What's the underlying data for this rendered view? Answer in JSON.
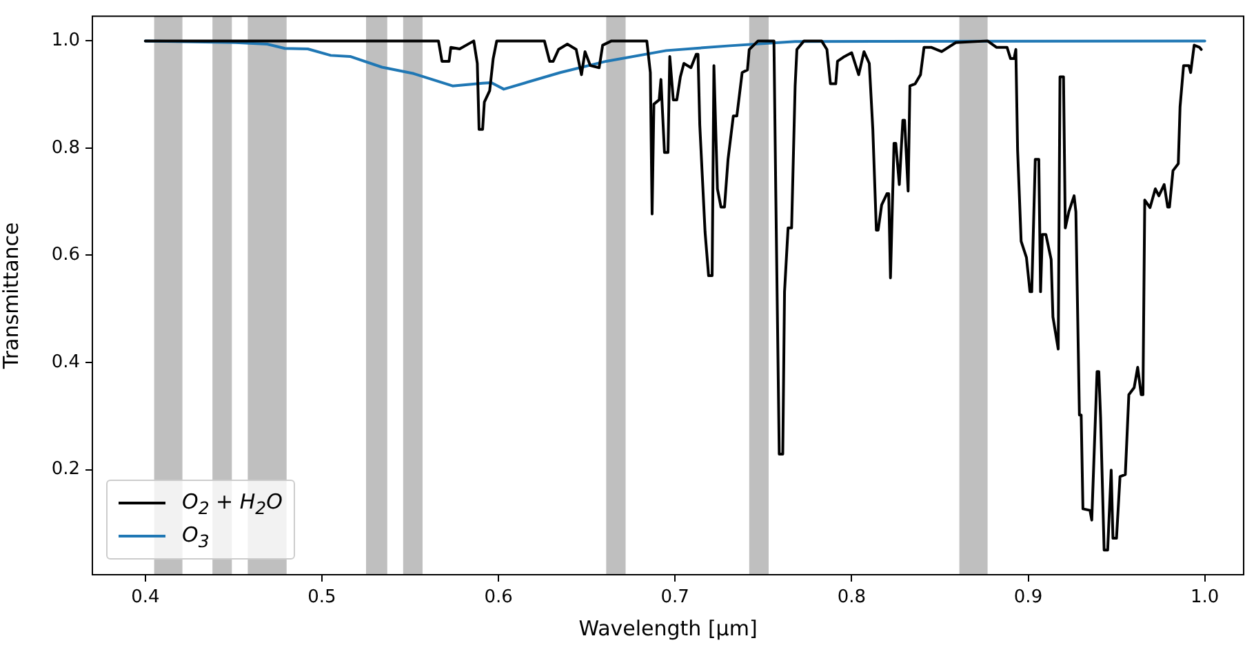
{
  "chart_data": {
    "type": "line",
    "xlabel": "Wavelength [μm]",
    "ylabel": "Transmittance",
    "xlim": [
      0.37,
      1.022
    ],
    "ylim": [
      0.004,
      1.046
    ],
    "xticks": [
      {
        "value": 0.4,
        "label": "0.4"
      },
      {
        "value": 0.5,
        "label": "0.5"
      },
      {
        "value": 0.6,
        "label": "0.6"
      },
      {
        "value": 0.7,
        "label": "0.7"
      },
      {
        "value": 0.8,
        "label": "0.8"
      },
      {
        "value": 0.9,
        "label": "0.9"
      },
      {
        "value": 1.0,
        "label": "1.0"
      }
    ],
    "yticks": [
      {
        "value": 0.2,
        "label": "0.2"
      },
      {
        "value": 0.4,
        "label": "0.4"
      },
      {
        "value": 0.6,
        "label": "0.6"
      },
      {
        "value": 0.8,
        "label": "0.8"
      },
      {
        "value": 1.0,
        "label": "1.0"
      }
    ],
    "grid": false,
    "legend": "bottom left",
    "marker": "none",
    "line_style": "solid",
    "bands": [
      {
        "axis": "x",
        "from": 0.405,
        "to": 0.421,
        "color": "#bfbfbf"
      },
      {
        "axis": "x",
        "from": 0.438,
        "to": 0.449,
        "color": "#bfbfbf"
      },
      {
        "axis": "x",
        "from": 0.458,
        "to": 0.48,
        "color": "#bfbfbf"
      },
      {
        "axis": "x",
        "from": 0.525,
        "to": 0.537,
        "color": "#bfbfbf"
      },
      {
        "axis": "x",
        "from": 0.546,
        "to": 0.557,
        "color": "#bfbfbf"
      },
      {
        "axis": "x",
        "from": 0.661,
        "to": 0.672,
        "color": "#bfbfbf"
      },
      {
        "axis": "x",
        "from": 0.742,
        "to": 0.753,
        "color": "#bfbfbf"
      },
      {
        "axis": "x",
        "from": 0.861,
        "to": 0.877,
        "color": "#bfbfbf"
      }
    ],
    "series": [
      {
        "name": "O$_{2}$ + H$_{2}$O",
        "color": "#000000",
        "x": [
          0.4,
          0.566,
          0.568,
          0.569,
          0.572,
          0.573,
          0.578,
          0.586,
          0.588,
          0.589,
          0.591,
          0.592,
          0.595,
          0.597,
          0.599,
          0.626,
          0.629,
          0.631,
          0.634,
          0.639,
          0.644,
          0.647,
          0.649,
          0.652,
          0.657,
          0.659,
          0.664,
          0.684,
          0.686,
          0.687,
          0.688,
          0.691,
          0.692,
          0.694,
          0.696,
          0.697,
          0.699,
          0.701,
          0.703,
          0.705,
          0.709,
          0.712,
          0.713,
          0.714,
          0.717,
          0.719,
          0.721,
          0.722,
          0.724,
          0.726,
          0.728,
          0.73,
          0.733,
          0.735,
          0.738,
          0.741,
          0.742,
          0.747,
          0.756,
          0.757,
          0.759,
          0.761,
          0.762,
          0.764,
          0.766,
          0.768,
          0.769,
          0.773,
          0.783,
          0.786,
          0.788,
          0.791,
          0.792,
          0.796,
          0.8,
          0.804,
          0.807,
          0.81,
          0.812,
          0.814,
          0.815,
          0.817,
          0.82,
          0.821,
          0.822,
          0.824,
          0.825,
          0.827,
          0.829,
          0.83,
          0.832,
          0.833,
          0.836,
          0.839,
          0.841,
          0.845,
          0.851,
          0.859,
          0.877,
          0.882,
          0.888,
          0.89,
          0.892,
          0.893,
          0.894,
          0.896,
          0.899,
          0.901,
          0.902,
          0.904,
          0.906,
          0.907,
          0.908,
          0.91,
          0.913,
          0.914,
          0.917,
          0.918,
          0.92,
          0.921,
          0.923,
          0.926,
          0.927,
          0.929,
          0.93,
          0.931,
          0.935,
          0.936,
          0.939,
          0.94,
          0.941,
          0.943,
          0.945,
          0.947,
          0.948,
          0.95,
          0.952,
          0.955,
          0.957,
          0.96,
          0.962,
          0.964,
          0.965,
          0.966,
          0.969,
          0.972,
          0.974,
          0.977,
          0.979,
          0.98,
          0.982,
          0.985,
          0.986,
          0.988,
          0.991,
          0.992,
          0.994,
          0.997,
          0.998
        ],
        "values": [
          1.0,
          1.0,
          0.962,
          0.962,
          0.962,
          0.988,
          0.985,
          1.0,
          0.958,
          0.835,
          0.835,
          0.886,
          0.907,
          0.967,
          1.0,
          1.0,
          0.962,
          0.962,
          0.984,
          0.994,
          0.984,
          0.937,
          0.98,
          0.954,
          0.95,
          0.992,
          1.0,
          1.0,
          0.941,
          0.677,
          0.882,
          0.89,
          0.928,
          0.792,
          0.792,
          0.971,
          0.89,
          0.89,
          0.933,
          0.958,
          0.95,
          0.975,
          0.975,
          0.843,
          0.643,
          0.562,
          0.562,
          0.954,
          0.724,
          0.69,
          0.69,
          0.779,
          0.86,
          0.86,
          0.941,
          0.946,
          0.984,
          1.0,
          1.0,
          0.728,
          0.229,
          0.229,
          0.532,
          0.651,
          0.651,
          0.916,
          0.984,
          1.0,
          1.0,
          0.984,
          0.92,
          0.92,
          0.962,
          0.971,
          0.978,
          0.937,
          0.98,
          0.958,
          0.835,
          0.647,
          0.647,
          0.694,
          0.715,
          0.715,
          0.558,
          0.809,
          0.809,
          0.732,
          0.852,
          0.852,
          0.72,
          0.916,
          0.92,
          0.937,
          0.988,
          0.988,
          0.98,
          0.997,
          1.0,
          0.988,
          0.988,
          0.967,
          0.967,
          0.984,
          0.796,
          0.626,
          0.596,
          0.532,
          0.532,
          0.779,
          0.779,
          0.532,
          0.639,
          0.639,
          0.592,
          0.485,
          0.425,
          0.933,
          0.933,
          0.651,
          0.681,
          0.711,
          0.681,
          0.302,
          0.302,
          0.127,
          0.124,
          0.106,
          0.383,
          0.383,
          0.297,
          0.05,
          0.05,
          0.199,
          0.072,
          0.072,
          0.187,
          0.191,
          0.34,
          0.353,
          0.391,
          0.34,
          0.34,
          0.703,
          0.689,
          0.724,
          0.711,
          0.732,
          0.69,
          0.69,
          0.758,
          0.771,
          0.877,
          0.954,
          0.954,
          0.941,
          0.992,
          0.988,
          0.984
        ]
      },
      {
        "name": "O$_{3}$",
        "color": "#1f77b4",
        "x": [
          0.4,
          0.451,
          0.469,
          0.479,
          0.492,
          0.505,
          0.516,
          0.534,
          0.552,
          0.574,
          0.591,
          0.596,
          0.603,
          0.635,
          0.661,
          0.695,
          0.731,
          0.768,
          1.0
        ],
        "values": [
          1.0,
          0.997,
          0.994,
          0.986,
          0.985,
          0.973,
          0.971,
          0.951,
          0.939,
          0.916,
          0.921,
          0.922,
          0.91,
          0.941,
          0.962,
          0.982,
          0.991,
          0.999,
          1.0
        ]
      }
    ]
  }
}
